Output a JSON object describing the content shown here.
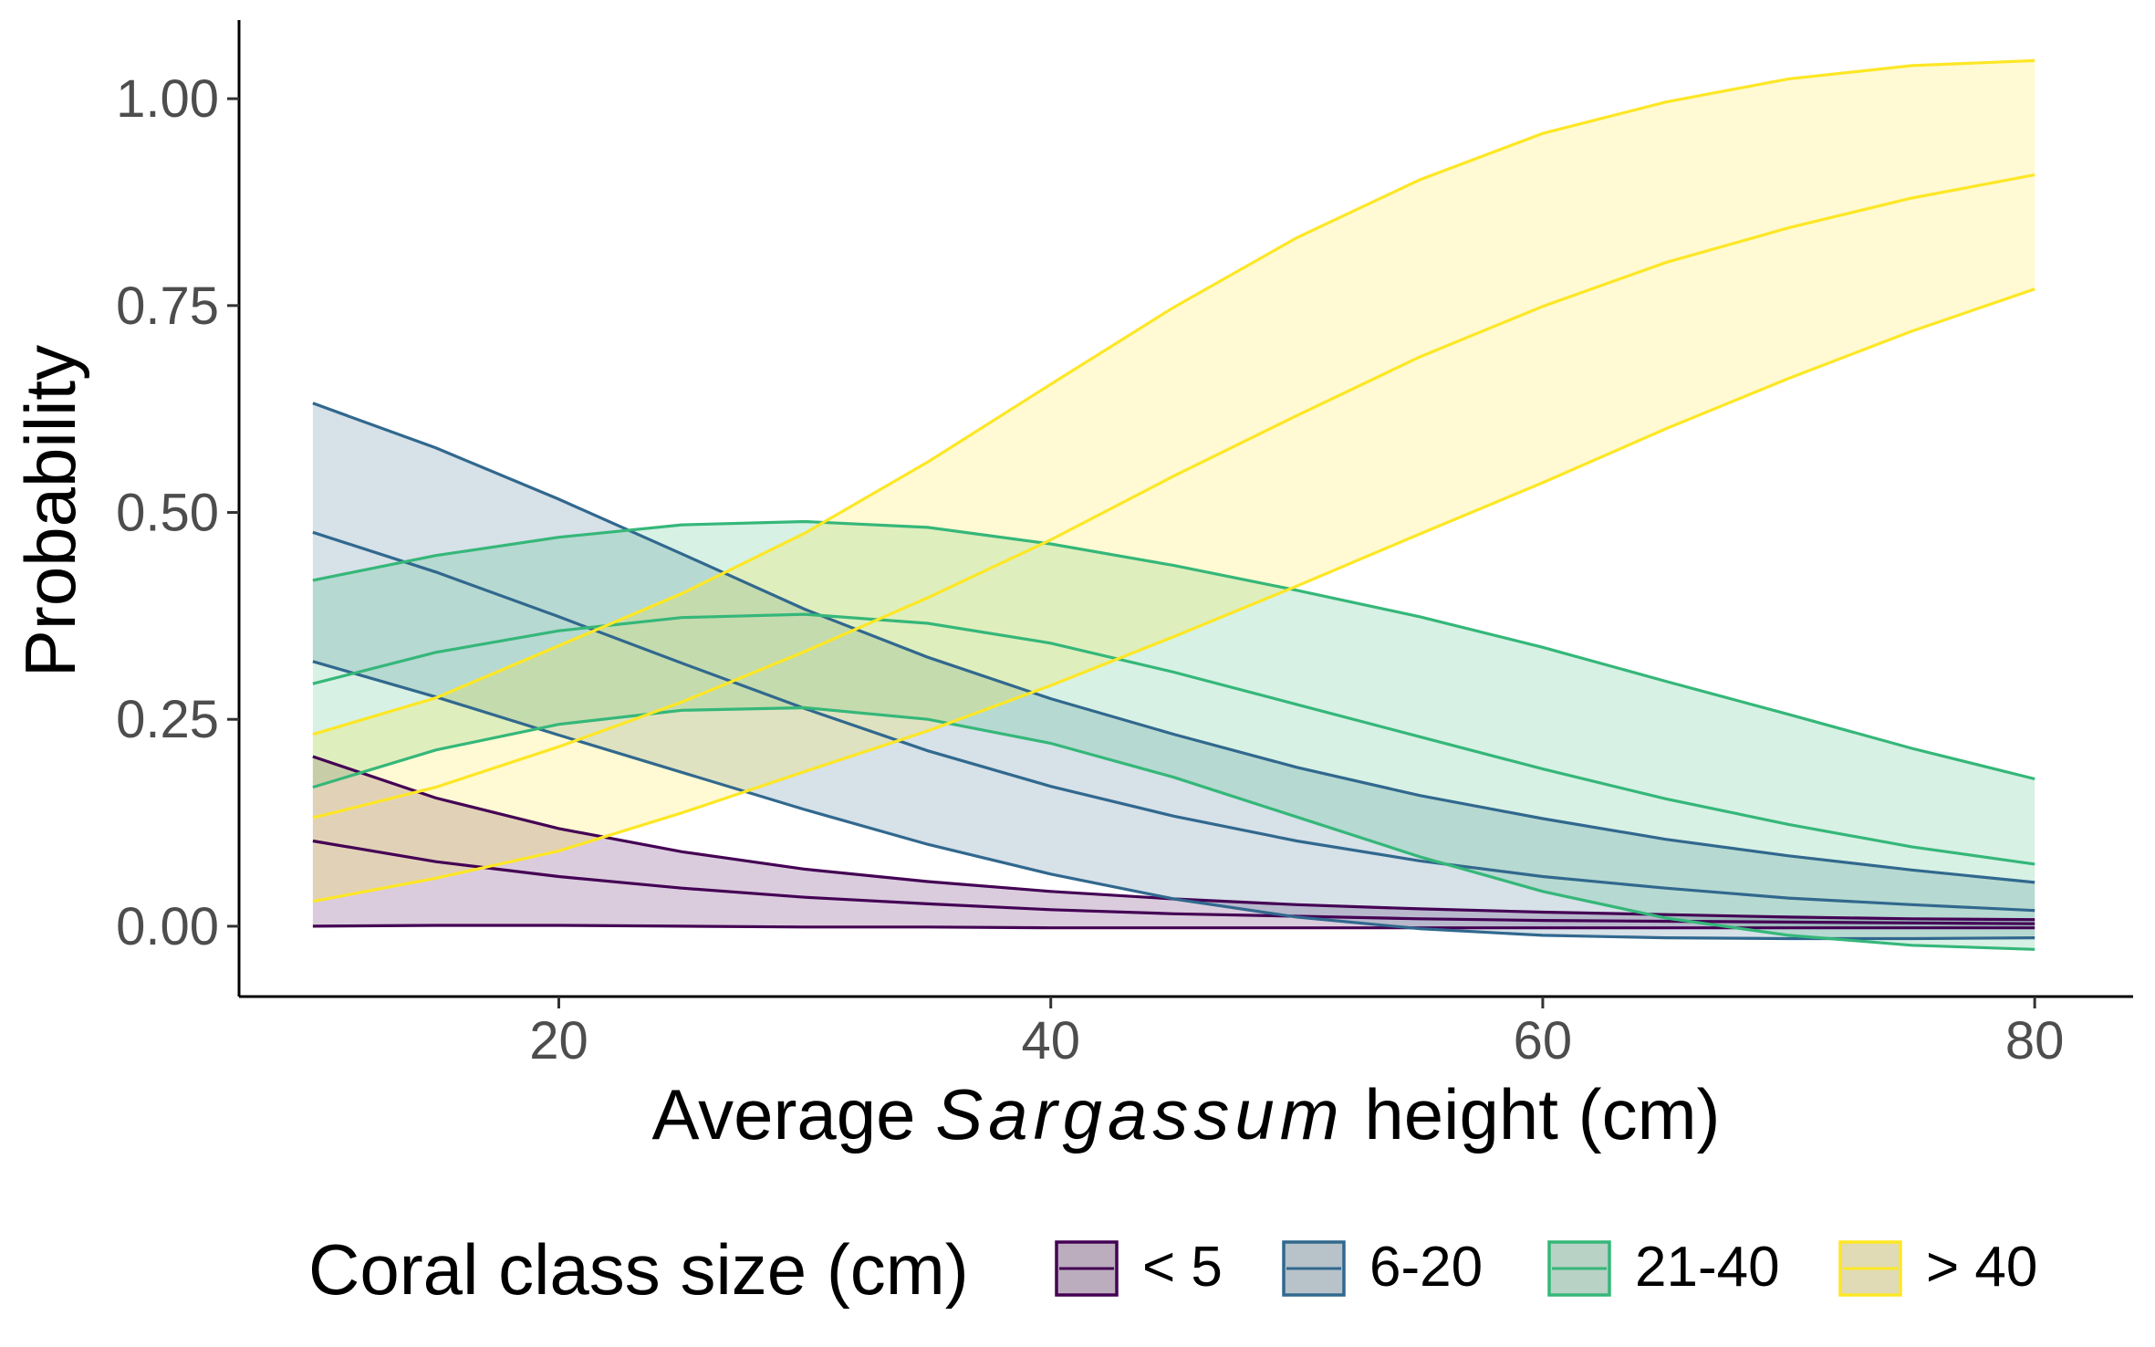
{
  "chart_data": {
    "type": "line",
    "title": "",
    "xlabel_prefix": "Average ",
    "xlabel_italic": "Sargassum",
    "xlabel_suffix": " height (cm)",
    "ylabel": "Probability",
    "xlim": [
      7,
      84
    ],
    "ylim": [
      -0.085,
      1.095
    ],
    "xticks": [
      20,
      40,
      60,
      80
    ],
    "xtick_labels": [
      "20",
      "40",
      "60",
      "80"
    ],
    "yticks": [
      0,
      0.25,
      0.5,
      0.75,
      1.0
    ],
    "ytick_labels": [
      "0.00",
      "0.25",
      "0.50",
      "0.75",
      "1.00"
    ],
    "grid": false,
    "legend": {
      "title": "Coral class size (cm)",
      "position": "bottom"
    },
    "x": [
      10,
      15,
      20,
      25,
      30,
      35,
      40,
      45,
      50,
      55,
      60,
      65,
      70,
      75,
      80
    ],
    "series": [
      {
        "name": "< 5",
        "color": "#440154",
        "fill": "#440154",
        "mean": [
          0.103,
          0.078,
          0.06,
          0.046,
          0.035,
          0.027,
          0.02,
          0.015,
          0.012,
          0.009,
          0.007,
          0.006,
          0.005,
          0.004,
          0.003
        ],
        "lower": [
          0.0,
          0.001,
          0.001,
          0.0,
          -0.001,
          -0.001,
          -0.002,
          -0.002,
          -0.002,
          -0.002,
          -0.002,
          -0.002,
          -0.002,
          -0.002,
          -0.002
        ],
        "upper": [
          0.205,
          0.155,
          0.118,
          0.09,
          0.069,
          0.054,
          0.042,
          0.033,
          0.026,
          0.021,
          0.017,
          0.014,
          0.011,
          0.009,
          0.008
        ]
      },
      {
        "name": "6-20",
        "color": "#31688e",
        "fill": "#31688e",
        "mean": [
          0.476,
          0.428,
          0.374,
          0.318,
          0.263,
          0.212,
          0.169,
          0.133,
          0.103,
          0.079,
          0.06,
          0.046,
          0.034,
          0.026,
          0.019
        ],
        "lower": [
          0.32,
          0.277,
          0.231,
          0.186,
          0.141,
          0.099,
          0.063,
          0.033,
          0.011,
          -0.003,
          -0.011,
          -0.014,
          -0.015,
          -0.015,
          -0.014
        ],
        "upper": [
          0.632,
          0.578,
          0.516,
          0.45,
          0.383,
          0.325,
          0.275,
          0.232,
          0.192,
          0.158,
          0.13,
          0.105,
          0.085,
          0.068,
          0.053
        ]
      },
      {
        "name": "21-40",
        "color": "#35b779",
        "fill": "#35b779",
        "mean": [
          0.293,
          0.331,
          0.357,
          0.373,
          0.377,
          0.366,
          0.342,
          0.307,
          0.268,
          0.229,
          0.19,
          0.154,
          0.123,
          0.096,
          0.075
        ],
        "lower": [
          0.168,
          0.213,
          0.244,
          0.261,
          0.264,
          0.25,
          0.221,
          0.18,
          0.132,
          0.084,
          0.042,
          0.01,
          -0.011,
          -0.023,
          -0.028
        ],
        "upper": [
          0.418,
          0.448,
          0.47,
          0.485,
          0.489,
          0.482,
          0.462,
          0.436,
          0.406,
          0.374,
          0.337,
          0.296,
          0.256,
          0.215,
          0.178
        ]
      },
      {
        "name": "> 40",
        "color": "#fde725",
        "fill": "#fde725",
        "mean": [
          0.131,
          0.168,
          0.217,
          0.271,
          0.332,
          0.397,
          0.467,
          0.544,
          0.617,
          0.688,
          0.749,
          0.802,
          0.844,
          0.88,
          0.908
        ],
        "lower": [
          0.03,
          0.058,
          0.091,
          0.137,
          0.187,
          0.236,
          0.291,
          0.35,
          0.411,
          0.474,
          0.536,
          0.601,
          0.662,
          0.719,
          0.77
        ],
        "upper": [
          0.232,
          0.276,
          0.339,
          0.402,
          0.475,
          0.561,
          0.655,
          0.748,
          0.832,
          0.902,
          0.958,
          0.996,
          1.024,
          1.04,
          1.046
        ]
      }
    ]
  }
}
